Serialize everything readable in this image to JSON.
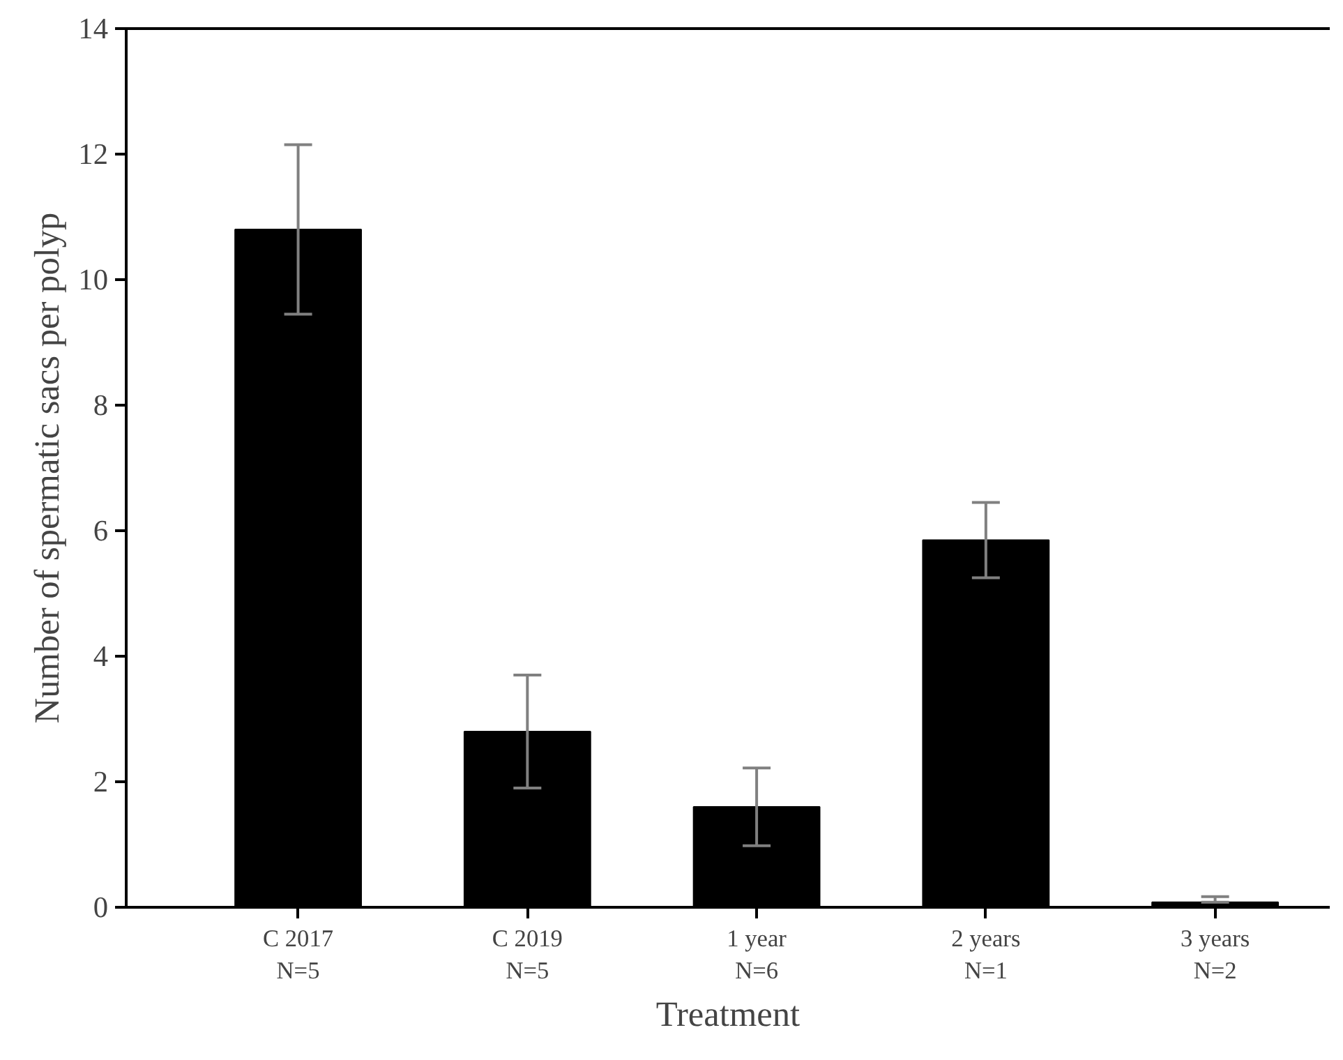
{
  "chart_data": {
    "type": "bar",
    "xlabel": "Treatment",
    "ylabel": "Number of spermatic sacs per polyp",
    "categories": [
      "C 2017\nN=5",
      "C 2019\nN=5",
      "1 year\nN=6",
      "2 years\nN=1",
      "3 years\nN=2"
    ],
    "values": [
      10.8,
      2.8,
      1.6,
      5.85,
      0.08
    ],
    "errors": [
      1.35,
      0.9,
      0.62,
      0.6,
      [
        0.08,
        0.17
      ]
    ],
    "color": "#000000",
    "ylim": [
      0,
      14
    ],
    "yticks": [
      0,
      2,
      4,
      6,
      8,
      10,
      12,
      14
    ],
    "grid": false
  }
}
